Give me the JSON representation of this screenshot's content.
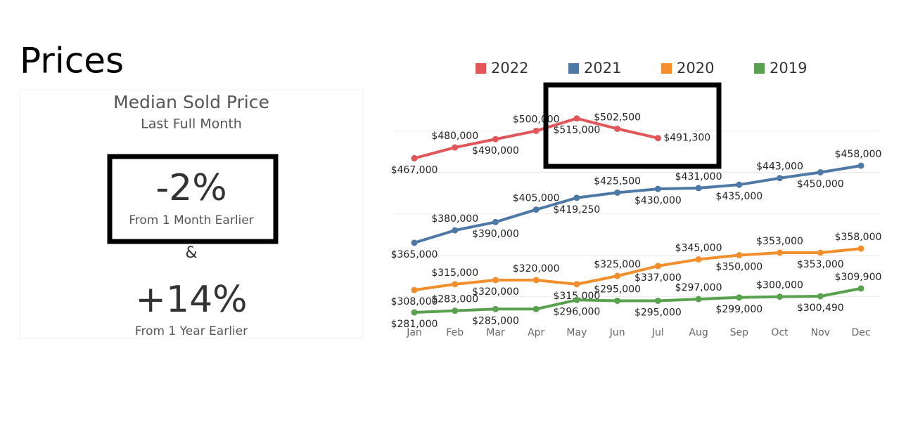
{
  "title": "Prices",
  "kpi": {
    "heading": "Median Sold Price",
    "subheading": "Last Full Month",
    "month_change": "-2%",
    "month_caption": "From 1 Month Earlier",
    "joiner": "&",
    "year_change": "+14%",
    "year_caption": "From 1 Year Earlier"
  },
  "chart_data": {
    "type": "line",
    "categories": [
      "Jan",
      "Feb",
      "Mar",
      "Apr",
      "May",
      "Jun",
      "Jul",
      "Aug",
      "Sep",
      "Oct",
      "Nov",
      "Dec"
    ],
    "ylim": [
      270000,
      530000
    ],
    "ygrid": [
      300000,
      350000,
      400000,
      450000,
      500000
    ],
    "series": [
      {
        "name": "2022",
        "color": "#e15759",
        "values": [
          467000,
          480000,
          490000,
          500000,
          515000,
          502500,
          491300,
          null,
          null,
          null,
          null,
          null
        ],
        "value_labels": [
          "$467,000",
          "$480,000",
          "$490,000",
          "$500,000",
          "$515,000",
          "$502,500",
          "$491,300",
          null,
          null,
          null,
          null,
          null
        ]
      },
      {
        "name": "2021",
        "color": "#4e79a7",
        "values": [
          365000,
          380000,
          390000,
          405000,
          419250,
          425500,
          430000,
          431000,
          435000,
          443000,
          450000,
          458000
        ],
        "value_labels": [
          "$365,000",
          "$380,000",
          "$390,000",
          "$405,000",
          "$419,250",
          "$425,500",
          "$430,000",
          "$431,000",
          "$435,000",
          "$443,000",
          "$450,000",
          "$458,000"
        ]
      },
      {
        "name": "2020",
        "color": "#f28e2b",
        "values": [
          308000,
          315000,
          320000,
          320000,
          315000,
          325000,
          337000,
          345000,
          350000,
          353000,
          353000,
          358000
        ],
        "value_labels": [
          "$308,000",
          "$315,000",
          "$320,000",
          "$320,000",
          "$315,000",
          "$325,000",
          "$337,000",
          "$345,000",
          "$350,000",
          "$353,000",
          "$353,000",
          "$358,000"
        ]
      },
      {
        "name": "2019",
        "color": "#59a14f",
        "values": [
          281000,
          283000,
          285000,
          285000,
          296000,
          295000,
          295000,
          297000,
          299000,
          300000,
          300490,
          309900
        ],
        "value_labels": [
          "$281,000",
          "$283,000",
          "$285,000",
          null,
          "$296,000",
          "$295,000",
          "$295,000",
          "$297,000",
          "$299,000",
          "$300,000",
          "$300,490",
          "$309,900"
        ]
      }
    ]
  }
}
